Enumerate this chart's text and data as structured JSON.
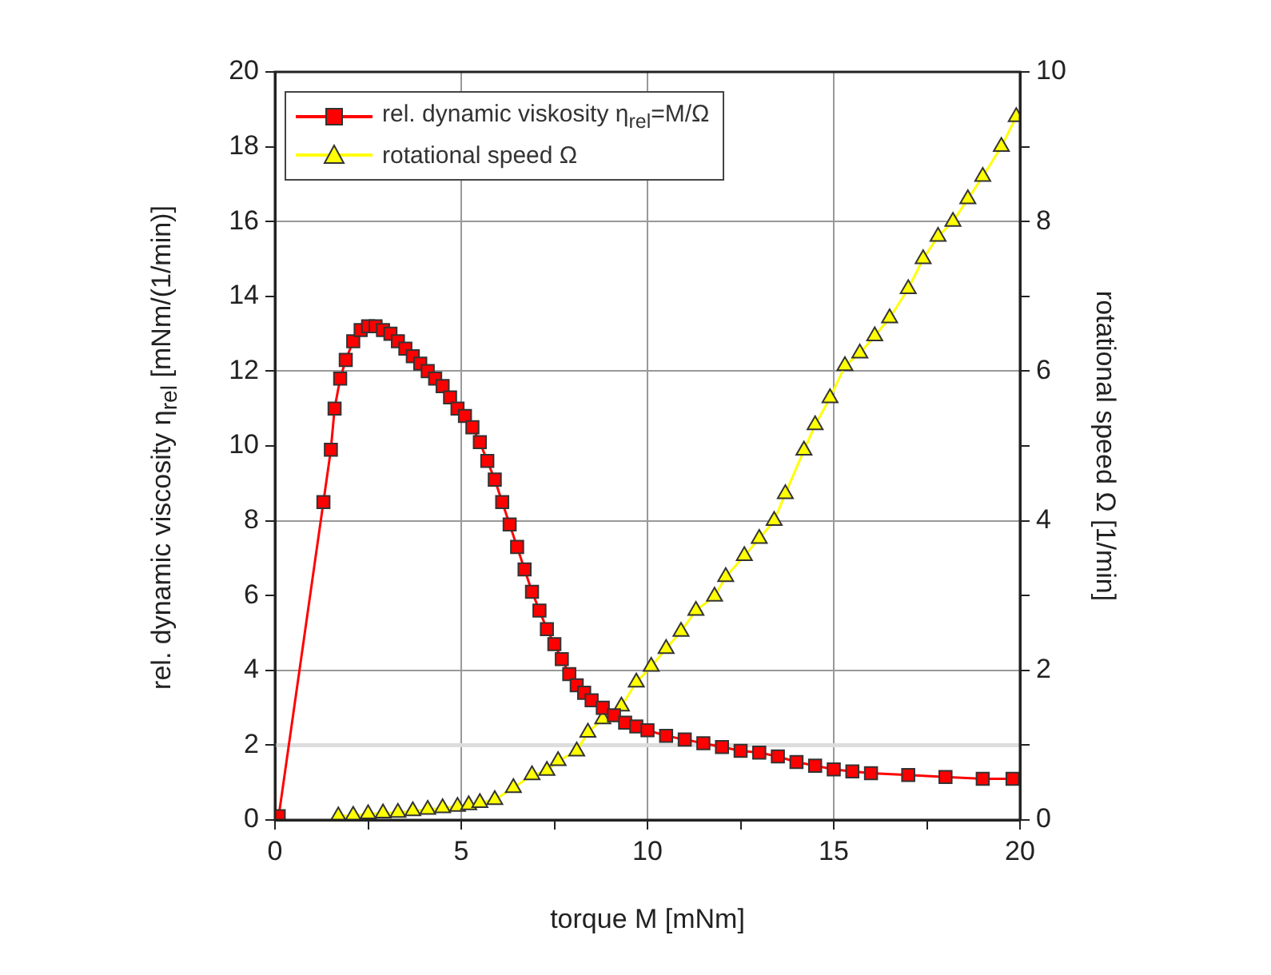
{
  "chart_data": {
    "type": "line",
    "xlabel": "torque M [mNm]",
    "ylabel": "rel. dynamic viscosity η$_{rel}$ [mNm/(1/min)]",
    "y2label": "rotational speed Ω [1/min]",
    "xlim": [
      0,
      20
    ],
    "xticks": [
      0,
      {
        "value": 2.5,
        "label": null
      },
      5,
      {
        "value": 7.5,
        "label": null
      },
      10,
      {
        "value": 12.5,
        "label": null
      },
      15,
      {
        "value": 17.5,
        "label": null
      },
      20
    ],
    "ylim": [
      0,
      20
    ],
    "yticks": [
      0,
      2,
      4,
      6,
      8,
      10,
      12,
      14,
      16,
      18,
      20
    ],
    "y2lim": [
      0,
      10
    ],
    "y2ticks": [
      0,
      {
        "value": 1,
        "label": null
      },
      2,
      {
        "value": 3,
        "label": null
      },
      4,
      {
        "value": 5,
        "label": null
      },
      6,
      {
        "value": 7,
        "label": null
      },
      8,
      {
        "value": 9,
        "label": null
      },
      10
    ],
    "grid": true,
    "legend": "top left",
    "line_style": "solid",
    "ref_lines": [
      {
        "axis": "y",
        "value": 2,
        "label": null,
        "color": "#dddddd"
      }
    ],
    "series": [
      {
        "name": "rel. dynamic viskosity η$_{rel}$=M/Ω",
        "color": "#ff0000",
        "marker": "square",
        "x": [
          0.1,
          1.3,
          1.5,
          1.6,
          1.75,
          1.9,
          2.1,
          2.3,
          2.5,
          2.7,
          2.9,
          3.1,
          3.3,
          3.5,
          3.7,
          3.9,
          4.1,
          4.3,
          4.5,
          4.7,
          4.9,
          5.1,
          5.3,
          5.5,
          5.7,
          5.9,
          6.1,
          6.3,
          6.5,
          6.7,
          6.9,
          7.1,
          7.3,
          7.5,
          7.7,
          7.9,
          8.1,
          8.3,
          8.5,
          8.8,
          9.1,
          9.4,
          9.7,
          10,
          10.5,
          11,
          11.5,
          12,
          12.5,
          13,
          13.5,
          14,
          14.5,
          15,
          15.5,
          16,
          17,
          18,
          19,
          19.8
        ],
        "values": [
          0.1,
          8.5,
          9.9,
          11.0,
          11.8,
          12.3,
          12.8,
          13.1,
          13.2,
          13.2,
          13.1,
          13.0,
          12.8,
          12.6,
          12.4,
          12.2,
          12.0,
          11.8,
          11.6,
          11.3,
          11.0,
          10.8,
          10.5,
          10.1,
          9.6,
          9.1,
          8.5,
          7.9,
          7.3,
          6.7,
          6.1,
          5.6,
          5.1,
          4.7,
          4.3,
          3.9,
          3.6,
          3.4,
          3.2,
          3.0,
          2.8,
          2.6,
          2.5,
          2.4,
          2.25,
          2.15,
          2.05,
          1.95,
          1.85,
          1.8,
          1.7,
          1.55,
          1.45,
          1.35,
          1.3,
          1.25,
          1.2,
          1.15,
          1.1,
          1.1
        ]
      },
      {
        "name": "rotational speed Ω",
        "color": "#ffff00",
        "marker": "triangle",
        "axis": "y2",
        "x": [
          1.7,
          2.1,
          2.5,
          2.9,
          3.3,
          3.7,
          4.1,
          4.5,
          4.9,
          5.2,
          5.5,
          5.9,
          6.4,
          6.9,
          7.3,
          7.6,
          8.1,
          8.4,
          8.8,
          9.3,
          9.7,
          10.1,
          10.5,
          10.9,
          11.3,
          11.8,
          12.1,
          12.6,
          13.0,
          13.4,
          13.7,
          14.2,
          14.5,
          14.9,
          15.3,
          15.7,
          16.1,
          16.5,
          17.0,
          17.4,
          17.8,
          18.2,
          18.6,
          19.0,
          19.5,
          19.9
        ],
        "values": [
          0.05,
          0.06,
          0.08,
          0.09,
          0.1,
          0.12,
          0.14,
          0.16,
          0.18,
          0.2,
          0.23,
          0.27,
          0.43,
          0.6,
          0.66,
          0.79,
          0.92,
          1.17,
          1.35,
          1.52,
          1.84,
          2.05,
          2.29,
          2.52,
          2.8,
          2.99,
          3.25,
          3.53,
          3.76,
          4.0,
          4.36,
          4.94,
          5.28,
          5.64,
          6.07,
          6.24,
          6.47,
          6.71,
          7.1,
          7.5,
          7.8,
          8.0,
          8.3,
          8.6,
          9.0,
          9.4
        ]
      }
    ]
  }
}
